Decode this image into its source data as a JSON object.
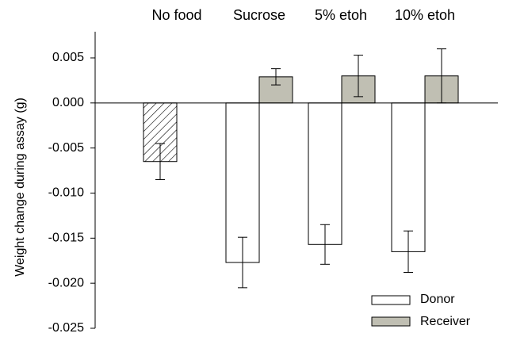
{
  "chart_data": {
    "type": "bar",
    "title": "",
    "xlabel": "",
    "ylabel": "Weight change during assay (g)",
    "ylim": [
      -0.025,
      0.008
    ],
    "yticks": [
      "0.005",
      "0.000",
      "-0.005",
      "-0.010",
      "-0.015",
      "-0.020",
      "-0.025"
    ],
    "ytick_values": [
      0.005,
      0.0,
      -0.005,
      -0.01,
      -0.015,
      -0.02,
      -0.025
    ],
    "categories": [
      "No food",
      "Sucrose",
      "5% etoh",
      "10% etoh"
    ],
    "category_label_position": "top",
    "series": [
      {
        "name": "Donor",
        "values": [
          null,
          -0.0177,
          -0.0157,
          -0.0165
        ],
        "errors": [
          null,
          0.0028,
          0.0022,
          0.0023
        ],
        "color": "#ffffff"
      },
      {
        "name": "Receiver",
        "values": [
          null,
          0.0029,
          0.003,
          0.003
        ],
        "errors": [
          null,
          0.0009,
          0.0023,
          0.003
        ],
        "color": "#c0bfb3"
      }
    ],
    "control": {
      "category": "No food",
      "value": -0.0065,
      "error": 0.002,
      "pattern": "diagonal-hatch"
    },
    "legend": {
      "placement": "bottom-right",
      "entries": [
        {
          "label": "Donor",
          "color": "#ffffff"
        },
        {
          "label": "Receiver",
          "color": "#c0bfb3"
        }
      ]
    },
    "grid": false
  }
}
